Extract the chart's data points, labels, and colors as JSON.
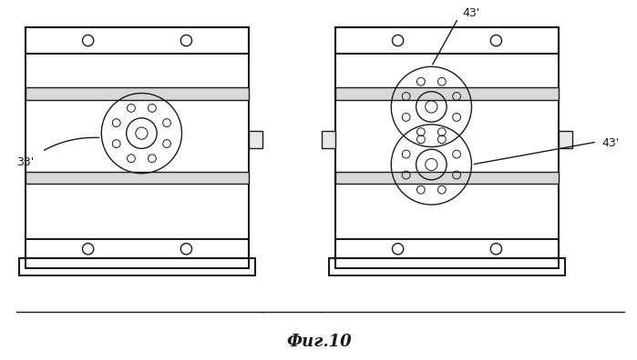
{
  "bg_color": "#ffffff",
  "line_color": "#1a1a1a",
  "fig_label": "Фиг.10",
  "label_33": "33'",
  "label_43_top": "43'",
  "label_43_right": "43'"
}
